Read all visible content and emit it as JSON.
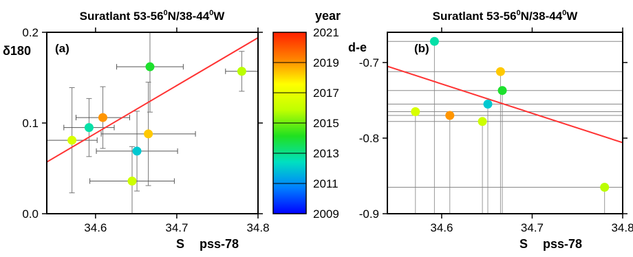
{
  "chart_data": [
    {
      "type": "scatter",
      "panel_label": "(a)",
      "title": "Suratlant 53-56",
      "title_sup1": "0",
      "title_mid": "N/38-44",
      "title_sup2": "0",
      "title_end": "W",
      "ylabel": "δ180",
      "xlabel_main": "S",
      "xlabel_unit": "pss-78",
      "xlim": [
        34.54,
        34.8
      ],
      "ylim": [
        0.0,
        0.2
      ],
      "x_ticks": [
        "34.6",
        "34.7",
        "34.8"
      ],
      "x_tick_values": [
        34.6,
        34.7,
        34.8
      ],
      "y_ticks": [
        "0.0",
        "0.1",
        "0.2"
      ],
      "y_tick_values": [
        0.0,
        0.1,
        0.2
      ],
      "grid": false,
      "fit_line": {
        "x": [
          34.54,
          34.8
        ],
        "y": [
          0.057,
          0.194
        ],
        "color": "#ff3333"
      },
      "points": [
        {
          "x": 34.571,
          "y": 0.081,
          "xerr": 0.031,
          "yerr": 0.058,
          "year": 2016.5
        },
        {
          "x": 34.592,
          "y": 0.095,
          "xerr": 0.031,
          "yerr": 0.032,
          "year": 2012.7
        },
        {
          "x": 34.609,
          "y": 0.106,
          "xerr": 0.033,
          "yerr": 0.034,
          "year": 2019.0
        },
        {
          "x": 34.651,
          "y": 0.069,
          "xerr": 0.05,
          "yerr": 0.044,
          "year": 2012.0
        },
        {
          "x": 34.665,
          "y": 0.088,
          "xerr": 0.058,
          "yerr": 0.057,
          "year": 2018.3
        },
        {
          "x": 34.645,
          "y": 0.036,
          "xerr": 0.052,
          "yerr": 0.038,
          "year": 2016.2
        },
        {
          "x": 34.667,
          "y": 0.162,
          "xerr": 0.041,
          "yerr": 0.05,
          "year": 2014.0
        },
        {
          "x": 34.78,
          "y": 0.157,
          "xerr": 0.02,
          "yerr": 0.022,
          "year": 2015.8
        }
      ]
    },
    {
      "type": "scatter",
      "panel_label": "(b)",
      "title": "Suratlant 53-56",
      "title_sup1": "0",
      "title_mid": "N/38-44",
      "title_sup2": "0",
      "title_end": "W",
      "ylabel": "d-e",
      "xlabel_main": "S",
      "xlabel_unit": "pss-78",
      "xlim": [
        34.54,
        34.8
      ],
      "ylim": [
        -0.9,
        -0.66
      ],
      "x_ticks": [
        "34.6",
        "34.7",
        "34.8"
      ],
      "x_tick_values": [
        34.6,
        34.7,
        34.8
      ],
      "y_ticks": [
        "-0.7",
        "-0.8",
        "-0.9"
      ],
      "y_tick_values": [
        -0.7,
        -0.8,
        -0.9
      ],
      "grid": false,
      "fit_line": {
        "x": [
          34.54,
          34.8
        ],
        "y": [
          -0.705,
          -0.806
        ],
        "color": "#ff3333"
      },
      "points": [
        {
          "x": 34.592,
          "y": -0.672,
          "year": 2012.7
        },
        {
          "x": 34.665,
          "y": -0.712,
          "year": 2018.3
        },
        {
          "x": 34.667,
          "y": -0.737,
          "year": 2014.0
        },
        {
          "x": 34.651,
          "y": -0.755,
          "year": 2012.0
        },
        {
          "x": 34.571,
          "y": -0.765,
          "year": 2016.5
        },
        {
          "x": 34.609,
          "y": -0.77,
          "year": 2019.0
        },
        {
          "x": 34.645,
          "y": -0.778,
          "year": 2016.2
        },
        {
          "x": 34.78,
          "y": -0.865,
          "year": 2015.8
        }
      ]
    }
  ],
  "colorbar": {
    "label": "year",
    "range": [
      2009,
      2021
    ],
    "ticks": [
      "2009",
      "2011",
      "2013",
      "2015",
      "2017",
      "2019",
      "2021"
    ],
    "tick_values": [
      2009,
      2011,
      2013,
      2015,
      2017,
      2019,
      2021
    ],
    "colors": [
      "#0000ff",
      "#0080ff",
      "#00e0c0",
      "#20e020",
      "#c0ff00",
      "#ffff00",
      "#ff8000",
      "#ff2000"
    ]
  }
}
